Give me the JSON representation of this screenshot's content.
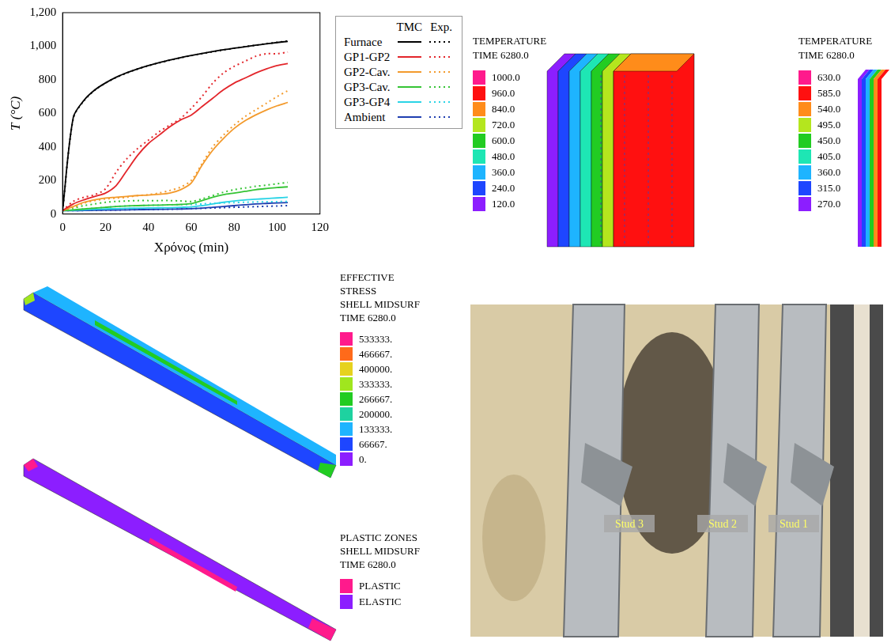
{
  "chart_data": {
    "type": "line",
    "xlabel": "Χρόνος (min)",
    "ylabel": "T (°C)",
    "xlim": [
      0,
      120
    ],
    "xticks": [
      0,
      20,
      40,
      60,
      80,
      100,
      120
    ],
    "ylim": [
      0,
      1200
    ],
    "yticks": [
      0,
      200,
      400,
      600,
      800,
      1000,
      1200
    ],
    "grid": false,
    "legend": "right",
    "x": [
      0,
      5,
      10,
      15,
      20,
      25,
      30,
      35,
      40,
      45,
      50,
      55,
      60,
      65,
      70,
      75,
      80,
      85,
      90,
      95,
      100,
      105
    ],
    "series": [
      {
        "name": "Furnace",
        "source": "TMC",
        "color": "#000000",
        "line_style": "solid",
        "values": [
          20,
          576,
          678,
          739,
          781,
          815,
          842,
          865,
          885,
          902,
          918,
          932,
          945,
          957,
          968,
          979,
          988,
          997,
          1006,
          1014,
          1022,
          1029
        ]
      },
      {
        "name": "Furnace",
        "source": "Exp.",
        "color": "#000000",
        "line_style": "dotted",
        "values": [
          20,
          570,
          675,
          738,
          780,
          814,
          841,
          864,
          884,
          901,
          917,
          931,
          944,
          956,
          967,
          978,
          988,
          997,
          1006,
          1015,
          1023,
          1031
        ]
      },
      {
        "name": "GP1-GP2",
        "source": "TMC",
        "color": "#e3262b",
        "line_style": "solid",
        "values": [
          20,
          60,
          85,
          105,
          125,
          170,
          260,
          350,
          420,
          470,
          520,
          560,
          590,
          640,
          690,
          740,
          780,
          810,
          840,
          865,
          885,
          897
        ]
      },
      {
        "name": "GP1-GP2",
        "source": "Exp.",
        "color": "#e3262b",
        "line_style": "dotted",
        "values": [
          20,
          75,
          100,
          115,
          150,
          250,
          330,
          390,
          440,
          490,
          530,
          570,
          630,
          700,
          780,
          840,
          880,
          910,
          940,
          955,
          955,
          965
        ]
      },
      {
        "name": "GP2-Cav.",
        "source": "TMC",
        "color": "#f39a2c",
        "line_style": "solid",
        "values": [
          20,
          45,
          70,
          85,
          95,
          100,
          105,
          110,
          113,
          118,
          125,
          145,
          185,
          290,
          380,
          450,
          510,
          555,
          590,
          620,
          645,
          665
        ]
      },
      {
        "name": "GP2-Cav.",
        "source": "Exp.",
        "color": "#f39a2c",
        "line_style": "dotted",
        "values": [
          20,
          40,
          65,
          80,
          90,
          95,
          100,
          110,
          115,
          125,
          140,
          160,
          200,
          300,
          400,
          470,
          530,
          580,
          620,
          660,
          700,
          735
        ]
      },
      {
        "name": "GP3-Cav.",
        "source": "TMC",
        "color": "#35c435",
        "line_style": "solid",
        "values": [
          20,
          25,
          30,
          35,
          40,
          45,
          48,
          50,
          52,
          53,
          55,
          57,
          62,
          80,
          100,
          115,
          125,
          135,
          145,
          152,
          158,
          162
        ]
      },
      {
        "name": "GP3-Cav.",
        "source": "Exp.",
        "color": "#35c435",
        "line_style": "dotted",
        "values": [
          20,
          35,
          50,
          60,
          70,
          75,
          78,
          80,
          80,
          80,
          80,
          78,
          75,
          90,
          110,
          130,
          145,
          155,
          165,
          172,
          180,
          188
        ]
      },
      {
        "name": "GP3-GP4",
        "source": "TMC",
        "color": "#2ad4e6",
        "line_style": "solid",
        "values": [
          20,
          22,
          25,
          28,
          30,
          32,
          34,
          35,
          36,
          37,
          38,
          40,
          42,
          50,
          60,
          70,
          78,
          84,
          88,
          92,
          96,
          100
        ]
      },
      {
        "name": "GP3-GP4",
        "source": "Exp.",
        "color": "#2ad4e6",
        "line_style": "dotted",
        "values": [
          20,
          25,
          30,
          35,
          40,
          45,
          48,
          50,
          52,
          53,
          55,
          56,
          57,
          60,
          63,
          66,
          68,
          70,
          72,
          73,
          74,
          75
        ]
      },
      {
        "name": "Ambient",
        "source": "TMC",
        "color": "#1f3fb0",
        "line_style": "solid",
        "values": [
          20,
          20,
          21,
          22,
          23,
          24,
          25,
          26,
          27,
          28,
          29,
          30,
          32,
          35,
          40,
          45,
          50,
          55,
          60,
          63,
          66,
          68
        ]
      },
      {
        "name": "Ambient",
        "source": "Exp.",
        "color": "#1f3fb0",
        "line_style": "dotted",
        "values": [
          20,
          20,
          21,
          22,
          23,
          24,
          25,
          26,
          27,
          28,
          29,
          30,
          32,
          34,
          36,
          38,
          40,
          42,
          44,
          46,
          48,
          50
        ]
      }
    ]
  },
  "temperature_panels": [
    {
      "title": [
        "TEMPERATURE",
        "TIME 6280.0"
      ],
      "scale": [
        {
          "label": "1000.0",
          "color": "#ff1a8c"
        },
        {
          "label": "960.0",
          "color": "#ff1010"
        },
        {
          "label": "840.0",
          "color": "#ff8c1a"
        },
        {
          "label": "720.0",
          "color": "#b4e61e"
        },
        {
          "label": "600.0",
          "color": "#22cc22"
        },
        {
          "label": "480.0",
          "color": "#1ee6b4"
        },
        {
          "label": "360.0",
          "color": "#1eb4ff"
        },
        {
          "label": "240.0",
          "color": "#1e46ff"
        },
        {
          "label": "120.0",
          "color": "#8c1eff"
        }
      ]
    },
    {
      "title": [
        "TEMPERATURE",
        "TIME 6280.0"
      ],
      "scale": [
        {
          "label": "630.0",
          "color": "#ff1a8c"
        },
        {
          "label": "585.0",
          "color": "#ff1010"
        },
        {
          "label": "540.0",
          "color": "#ff8c1a"
        },
        {
          "label": "495.0",
          "color": "#b4e61e"
        },
        {
          "label": "450.0",
          "color": "#22cc22"
        },
        {
          "label": "405.0",
          "color": "#1ee6b4"
        },
        {
          "label": "360.0",
          "color": "#1eb4ff"
        },
        {
          "label": "315.0",
          "color": "#1e46ff"
        },
        {
          "label": "270.0",
          "color": "#8c1eff"
        }
      ]
    }
  ],
  "stress_panels": [
    {
      "title": [
        "EFFECTIVE",
        "STRESS",
        "SHELL MIDSURF",
        "TIME 6280.0"
      ],
      "scale": [
        {
          "label": "533333.",
          "color": "#ff1a8c"
        },
        {
          "label": "466667.",
          "color": "#ff6a1a"
        },
        {
          "label": "400000.",
          "color": "#e6d21e"
        },
        {
          "label": "333333.",
          "color": "#a0e61e"
        },
        {
          "label": "266667.",
          "color": "#22cc22"
        },
        {
          "label": "200000.",
          "color": "#1ed2a0"
        },
        {
          "label": "133333.",
          "color": "#1eb4ff"
        },
        {
          "label": "66667.",
          "color": "#1e46ff"
        },
        {
          "label": "0.",
          "color": "#8c1eff"
        }
      ]
    },
    {
      "title": [
        "PLASTIC ZONES",
        "SHELL MIDSURF",
        "TIME 6280.0"
      ],
      "scale": [
        {
          "label": "PLASTIC",
          "color": "#ff1a8c"
        },
        {
          "label": "ELASTIC",
          "color": "#8c1eff"
        }
      ]
    }
  ],
  "photo": {
    "labels": [
      "Stud 3",
      "Stud 2",
      "Stud 1"
    ]
  }
}
